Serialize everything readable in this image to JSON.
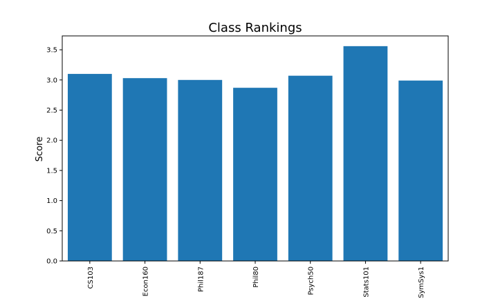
{
  "chart_data": {
    "type": "bar",
    "title": "Class Rankings",
    "xlabel": "",
    "ylabel": "Score",
    "categories": [
      "CS103",
      "Econ160",
      "Phil187",
      "Phil80",
      "Psych50",
      "Stats101",
      "SymSys1"
    ],
    "values": [
      3.1,
      3.03,
      3.0,
      2.87,
      3.07,
      3.56,
      2.99
    ],
    "ylim": [
      0,
      3.73
    ],
    "yticks": [
      "0.0",
      "0.5",
      "1.0",
      "1.5",
      "2.0",
      "2.5",
      "3.0",
      "3.5"
    ],
    "bar_color": "#1f77b4",
    "grid": false,
    "legend": false
  }
}
